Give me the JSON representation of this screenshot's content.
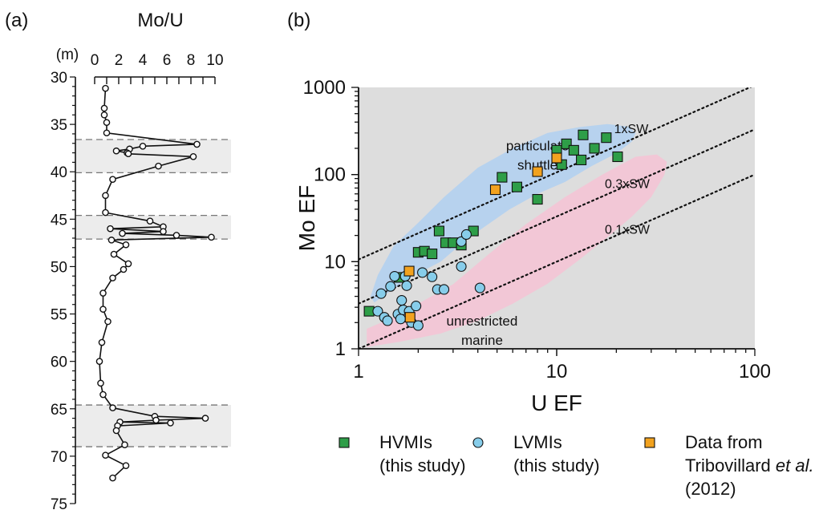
{
  "chart_data": [
    {
      "type": "line",
      "panel_label": "(a)",
      "title": "Mo/U",
      "depth_unit_label": "(m)",
      "x_axis": {
        "range": [
          0,
          10
        ],
        "ticks": [
          0,
          2,
          4,
          6,
          8,
          10
        ],
        "position": "top"
      },
      "y_axis": {
        "range": [
          30,
          75
        ],
        "ticks": [
          30,
          35,
          40,
          45,
          50,
          55,
          60,
          65,
          70,
          75
        ],
        "inverted": true
      },
      "shaded_intervals": [
        [
          36.6,
          40.1
        ],
        [
          44.6,
          47.1
        ],
        [
          64.6,
          69.0
        ]
      ],
      "series": [
        {
          "marker": "open-circle",
          "points": [
            {
              "x": 0.9,
              "y": 31.2
            },
            {
              "x": 0.8,
              "y": 33.3
            },
            {
              "x": 0.8,
              "y": 34.0
            },
            {
              "x": 1.0,
              "y": 34.8
            },
            {
              "x": 1.0,
              "y": 35.9
            },
            {
              "x": 8.5,
              "y": 37.1
            },
            {
              "x": 4.0,
              "y": 37.3
            },
            {
              "x": 2.9,
              "y": 37.6
            },
            {
              "x": 1.8,
              "y": 37.8
            },
            {
              "x": 2.7,
              "y": 38.0
            },
            {
              "x": 2.8,
              "y": 38.1
            },
            {
              "x": 8.2,
              "y": 38.4
            },
            {
              "x": 5.3,
              "y": 39.4
            },
            {
              "x": 1.5,
              "y": 40.8
            },
            {
              "x": 0.9,
              "y": 42.5
            },
            {
              "x": 0.9,
              "y": 44.3
            },
            {
              "x": 4.6,
              "y": 45.2
            },
            {
              "x": 5.7,
              "y": 45.8
            },
            {
              "x": 1.3,
              "y": 46.0
            },
            {
              "x": 5.7,
              "y": 46.3
            },
            {
              "x": 2.3,
              "y": 46.5
            },
            {
              "x": 6.8,
              "y": 46.7
            },
            {
              "x": 9.7,
              "y": 46.9
            },
            {
              "x": 1.4,
              "y": 47.2
            },
            {
              "x": 2.6,
              "y": 47.7
            },
            {
              "x": 1.6,
              "y": 48.7
            },
            {
              "x": 2.8,
              "y": 49.7
            },
            {
              "x": 2.4,
              "y": 50.3
            },
            {
              "x": 1.5,
              "y": 51.2
            },
            {
              "x": 0.7,
              "y": 52.8
            },
            {
              "x": 0.7,
              "y": 54.5
            },
            {
              "x": 1.1,
              "y": 55.8
            },
            {
              "x": 0.6,
              "y": 58.0
            },
            {
              "x": 0.4,
              "y": 60.0
            },
            {
              "x": 0.5,
              "y": 62.3
            },
            {
              "x": 0.7,
              "y": 63.5
            },
            {
              "x": 1.5,
              "y": 64.9
            },
            {
              "x": 5.0,
              "y": 65.8
            },
            {
              "x": 9.2,
              "y": 66.0
            },
            {
              "x": 5.1,
              "y": 66.2
            },
            {
              "x": 2.1,
              "y": 66.4
            },
            {
              "x": 6.3,
              "y": 66.5
            },
            {
              "x": 1.9,
              "y": 66.8
            },
            {
              "x": 1.8,
              "y": 67.3
            },
            {
              "x": 2.5,
              "y": 68.8
            },
            {
              "x": 0.9,
              "y": 69.9
            },
            {
              "x": 2.6,
              "y": 71.0
            },
            {
              "x": 1.5,
              "y": 72.3
            }
          ]
        }
      ]
    },
    {
      "type": "scatter",
      "panel_label": "(b)",
      "xlabel": "U EF",
      "ylabel": "Mo EF",
      "x_axis": {
        "scale": "log",
        "range": [
          1,
          100
        ],
        "ticks": [
          1,
          10,
          100
        ]
      },
      "y_axis": {
        "scale": "log",
        "range": [
          1,
          1000
        ],
        "ticks": [
          1,
          10,
          100,
          1000
        ]
      },
      "background": "#dddddd",
      "regions": [
        {
          "label_lines": [
            "particulate",
            "shuttle"
          ],
          "color": "#b7d2ee",
          "polygon": [
            [
              1.2,
              3.4
            ],
            [
              1.8,
              6.5
            ],
            [
              2.6,
              10.0
            ],
            [
              3.3,
              16.0
            ],
            [
              4.2,
              24.0
            ],
            [
              5.8,
              40.0
            ],
            [
              8.0,
              60.0
            ],
            [
              11.0,
              82.0
            ],
            [
              15.0,
              125.0
            ],
            [
              20.0,
              175.0
            ],
            [
              24.0,
              240.0
            ],
            [
              25.0,
              300.0
            ],
            [
              23.0,
              355.0
            ],
            [
              18.0,
              380.0
            ],
            [
              13.0,
              350.0
            ],
            [
              9.0,
              300.0
            ],
            [
              6.0,
              200.0
            ],
            [
              4.0,
              120.0
            ],
            [
              2.7,
              55.0
            ],
            [
              2.0,
              28.0
            ],
            [
              1.5,
              15.0
            ],
            [
              1.25,
              7.0
            ],
            [
              1.15,
              4.0
            ]
          ]
        },
        {
          "label_lines": [
            "unrestricted",
            "marine"
          ],
          "color": "#f2c7d6",
          "polygon": [
            [
              1.1,
              1.05
            ],
            [
              1.6,
              1.2
            ],
            [
              2.6,
              1.5
            ],
            [
              4.0,
              2.1
            ],
            [
              6.0,
              3.3
            ],
            [
              9.0,
              5.6
            ],
            [
              13.0,
              10.5
            ],
            [
              18.0,
              19.0
            ],
            [
              24.0,
              33.0
            ],
            [
              30.0,
              55.0
            ],
            [
              35.0,
              100.0
            ],
            [
              36.0,
              140.0
            ],
            [
              32.0,
              170.0
            ],
            [
              25.0,
              160.0
            ],
            [
              17.0,
              100.0
            ],
            [
              11.0,
              55.0
            ],
            [
              7.0,
              27.0
            ],
            [
              4.5,
              12.0
            ],
            [
              3.0,
              5.5
            ],
            [
              2.1,
              3.5
            ],
            [
              1.5,
              2.3
            ],
            [
              1.1,
              1.7
            ]
          ]
        }
      ],
      "reference_lines": [
        {
          "label": "1xSW",
          "factor": 10.6
        },
        {
          "label": "0.3xSW",
          "factor": 3.3
        },
        {
          "label": "0.1xSW",
          "factor": 1.0
        }
      ],
      "legend_position": "bottom",
      "series": [
        {
          "name": "HVMIs",
          "legend_lines": [
            "HVMIs",
            "(this study)"
          ],
          "marker": "square",
          "color": "#2e9e48",
          "points": [
            {
              "x": 1.13,
              "y": 2.7
            },
            {
              "x": 1.6,
              "y": 6.6
            },
            {
              "x": 2.0,
              "y": 12.8
            },
            {
              "x": 2.15,
              "y": 13.2
            },
            {
              "x": 2.35,
              "y": 12.3
            },
            {
              "x": 2.55,
              "y": 22.5
            },
            {
              "x": 2.75,
              "y": 16.5
            },
            {
              "x": 3.0,
              "y": 16.5
            },
            {
              "x": 3.3,
              "y": 15.5
            },
            {
              "x": 3.8,
              "y": 22.5
            },
            {
              "x": 5.3,
              "y": 93.0
            },
            {
              "x": 6.3,
              "y": 72.0
            },
            {
              "x": 8.0,
              "y": 52.0
            },
            {
              "x": 10.0,
              "y": 190.0
            },
            {
              "x": 10.6,
              "y": 130.0
            },
            {
              "x": 11.2,
              "y": 225.0
            },
            {
              "x": 12.2,
              "y": 190.0
            },
            {
              "x": 13.3,
              "y": 147.0
            },
            {
              "x": 13.6,
              "y": 285.0
            },
            {
              "x": 15.5,
              "y": 200.0
            },
            {
              "x": 17.8,
              "y": 265.0
            },
            {
              "x": 20.3,
              "y": 160.0
            }
          ]
        },
        {
          "name": "LVMIs",
          "legend_lines": [
            "LVMIs",
            "(this study)"
          ],
          "marker": "circle",
          "color": "#87cdea",
          "points": [
            {
              "x": 1.25,
              "y": 2.7
            },
            {
              "x": 1.3,
              "y": 4.3
            },
            {
              "x": 1.35,
              "y": 2.3
            },
            {
              "x": 1.4,
              "y": 2.1
            },
            {
              "x": 1.45,
              "y": 5.2
            },
            {
              "x": 1.52,
              "y": 6.8
            },
            {
              "x": 1.58,
              "y": 2.5
            },
            {
              "x": 1.63,
              "y": 2.2
            },
            {
              "x": 1.65,
              "y": 3.6
            },
            {
              "x": 1.68,
              "y": 2.8
            },
            {
              "x": 1.72,
              "y": 6.8
            },
            {
              "x": 1.75,
              "y": 5.3
            },
            {
              "x": 1.8,
              "y": 2.7
            },
            {
              "x": 1.85,
              "y": 2.0
            },
            {
              "x": 1.95,
              "y": 3.1
            },
            {
              "x": 2.0,
              "y": 1.85
            },
            {
              "x": 2.1,
              "y": 7.5
            },
            {
              "x": 2.35,
              "y": 6.7
            },
            {
              "x": 2.5,
              "y": 4.8
            },
            {
              "x": 2.7,
              "y": 4.8
            },
            {
              "x": 3.3,
              "y": 8.8
            },
            {
              "x": 3.3,
              "y": 17.0
            },
            {
              "x": 3.5,
              "y": 20.5
            },
            {
              "x": 4.1,
              "y": 5.0
            }
          ]
        },
        {
          "name": "Data from Tribovillard et al. (2012)",
          "legend_lines": [
            "Data from",
            "Tribovillard et al.",
            "(2012)"
          ],
          "marker": "square",
          "color": "#f2a21f",
          "points": [
            {
              "x": 1.8,
              "y": 7.8
            },
            {
              "x": 1.82,
              "y": 2.3
            },
            {
              "x": 4.9,
              "y": 67.0
            },
            {
              "x": 8.0,
              "y": 108.0
            },
            {
              "x": 10.0,
              "y": 155.0
            }
          ]
        }
      ]
    }
  ]
}
